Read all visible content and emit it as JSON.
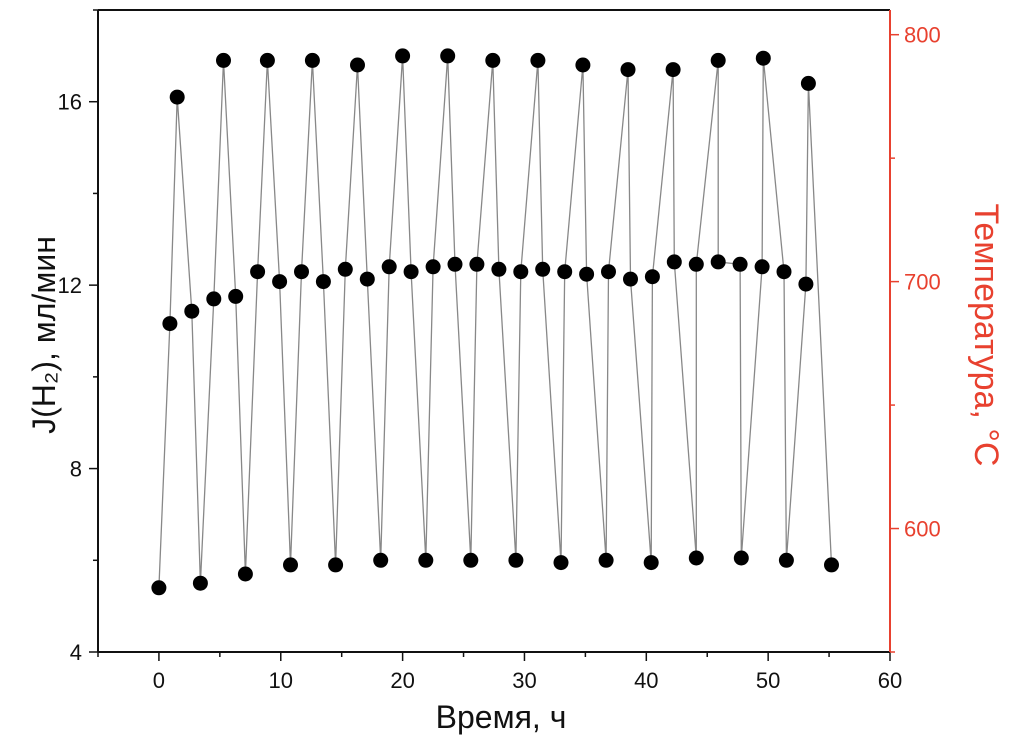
{
  "chart_data": {
    "type": "line",
    "title": "",
    "xlabel": "Время, ч",
    "ylabel_left": "J(H₂), мл/мин",
    "ylabel_right": "Температура, °C",
    "xlim": [
      -5,
      60
    ],
    "ylim_left": [
      4,
      18
    ],
    "ylim_right": [
      550,
      810
    ],
    "x_ticks": [
      0,
      10,
      20,
      30,
      40,
      50,
      60
    ],
    "y_left_ticks": [
      4,
      8,
      12,
      16
    ],
    "y_right_ticks": [
      600,
      700,
      800
    ],
    "grid": false,
    "legend": "none",
    "colors": {
      "series": "#000000",
      "line": "#888888",
      "right_axis": "#e8412f"
    },
    "series": [
      {
        "axis": "left",
        "x": [
          0,
          1.5,
          3.4,
          5.3,
          7.1,
          8.9,
          10.8,
          12.6,
          14.5,
          16.3,
          18.2,
          20,
          21.9,
          23.7,
          25.6,
          27.4,
          29.3,
          31.1,
          33,
          34.8,
          36.7,
          38.5,
          40.4,
          42.2,
          44.1,
          45.9,
          47.8,
          49.6,
          51.5,
          53.3,
          55.2
        ],
        "y": [
          5.4,
          16.1,
          5.5,
          16.9,
          5.7,
          16.9,
          5.9,
          16.9,
          5.9,
          16.8,
          6.0,
          17.0,
          6.0,
          17.0,
          6.0,
          16.9,
          6.0,
          16.9,
          5.95,
          16.8,
          6.0,
          16.7,
          5.95,
          16.7,
          6.05,
          16.9,
          6.05,
          16.95,
          6.0,
          16.4,
          5.9
        ]
      },
      {
        "axis": "right",
        "x": [
          0.9,
          2.7,
          4.5,
          6.3,
          8.1,
          9.9,
          11.7,
          13.5,
          15.3,
          17.1,
          18.9,
          20.7,
          22.5,
          24.3,
          26.1,
          27.9,
          29.7,
          31.5,
          33.3,
          35.1,
          36.9,
          38.7,
          40.5,
          42.3,
          44.1,
          45.9,
          47.7,
          49.5,
          51.3,
          53.1
        ],
        "y": [
          683,
          688,
          693,
          694,
          704,
          700,
          704,
          700,
          705,
          701,
          706,
          704,
          706,
          707,
          707,
          705,
          704,
          705,
          704,
          703,
          704,
          701,
          702,
          708,
          707,
          708,
          707,
          706,
          704,
          699
        ]
      }
    ]
  }
}
